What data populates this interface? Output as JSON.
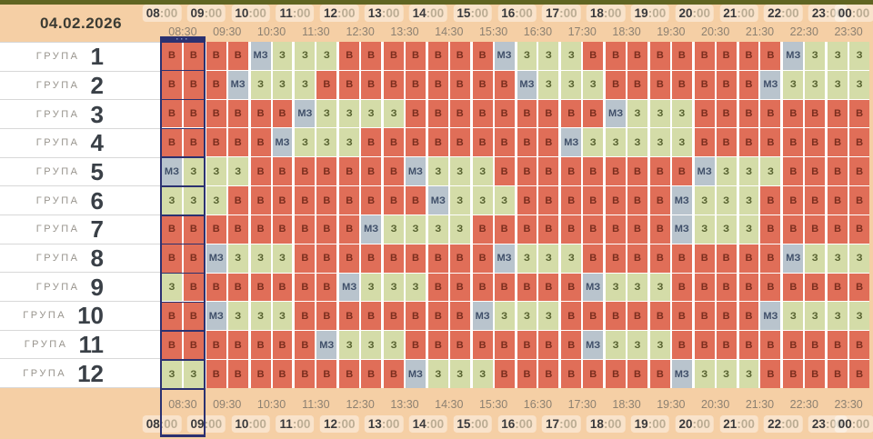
{
  "header": {
    "date": "04.02.2026"
  },
  "time_axis": {
    "hours": [
      "08:00",
      "09:00",
      "10:00",
      "11:00",
      "12:00",
      "13:00",
      "14:00",
      "15:00",
      "16:00",
      "17:00",
      "18:00",
      "19:00",
      "20:00",
      "21:00",
      "22:00",
      "23:00",
      "00:00"
    ],
    "half_hours": [
      "08:30",
      "09:30",
      "10:30",
      "11:30",
      "12:30",
      "13:30",
      "14:30",
      "15:30",
      "16:30",
      "17:30",
      "18:30",
      "19:30",
      "20:30",
      "21:30",
      "22:30",
      "23:30"
    ]
  },
  "highlight": {
    "marker": "···",
    "start_hour_index": 0
  },
  "groups_panel": {
    "group_word": "ГРУПА",
    "groups": [
      {
        "number": "1",
        "cells": [
          "В",
          "В",
          "В",
          "В",
          "МЗ",
          "З",
          "З",
          "З",
          "В",
          "В",
          "В",
          "В",
          "В",
          "В",
          "В",
          "МЗ",
          "З",
          "З",
          "З",
          "В",
          "В",
          "В",
          "В",
          "В",
          "В",
          "В",
          "В",
          "В",
          "МЗ",
          "З",
          "З",
          "З"
        ]
      },
      {
        "number": "2",
        "cells": [
          "В",
          "В",
          "В",
          "МЗ",
          "З",
          "З",
          "З",
          "В",
          "В",
          "В",
          "В",
          "В",
          "В",
          "В",
          "В",
          "В",
          "МЗ",
          "З",
          "З",
          "З",
          "В",
          "В",
          "В",
          "В",
          "В",
          "В",
          "В",
          "МЗ",
          "З",
          "З",
          "З",
          "З"
        ]
      },
      {
        "number": "3",
        "cells": [
          "В",
          "В",
          "В",
          "В",
          "В",
          "В",
          "МЗ",
          "З",
          "З",
          "З",
          "З",
          "В",
          "В",
          "В",
          "В",
          "В",
          "В",
          "В",
          "В",
          "В",
          "МЗ",
          "З",
          "З",
          "З",
          "В",
          "В",
          "В",
          "В",
          "В",
          "В",
          "В",
          "В"
        ]
      },
      {
        "number": "4",
        "cells": [
          "В",
          "В",
          "В",
          "В",
          "В",
          "МЗ",
          "З",
          "З",
          "З",
          "В",
          "В",
          "В",
          "В",
          "В",
          "В",
          "В",
          "В",
          "В",
          "МЗ",
          "З",
          "З",
          "З",
          "З",
          "З",
          "В",
          "В",
          "В",
          "В",
          "В",
          "В",
          "В",
          "В"
        ]
      },
      {
        "number": "5",
        "cells": [
          "МЗ",
          "З",
          "З",
          "З",
          "В",
          "В",
          "В",
          "В",
          "В",
          "В",
          "В",
          "МЗ",
          "З",
          "З",
          "З",
          "В",
          "В",
          "В",
          "В",
          "В",
          "В",
          "В",
          "В",
          "В",
          "МЗ",
          "З",
          "З",
          "З",
          "В",
          "В",
          "В",
          "В"
        ]
      },
      {
        "number": "6",
        "cells": [
          "З",
          "З",
          "З",
          "В",
          "В",
          "В",
          "В",
          "В",
          "В",
          "В",
          "В",
          "В",
          "МЗ",
          "З",
          "З",
          "З",
          "В",
          "В",
          "В",
          "В",
          "В",
          "В",
          "В",
          "МЗ",
          "З",
          "З",
          "З",
          "В",
          "В",
          "В",
          "В",
          "В"
        ]
      },
      {
        "number": "7",
        "cells": [
          "В",
          "В",
          "В",
          "В",
          "В",
          "В",
          "В",
          "В",
          "В",
          "МЗ",
          "З",
          "З",
          "З",
          "З",
          "В",
          "В",
          "В",
          "В",
          "В",
          "В",
          "В",
          "В",
          "В",
          "МЗ",
          "З",
          "З",
          "З",
          "В",
          "В",
          "В",
          "В",
          "В"
        ]
      },
      {
        "number": "8",
        "cells": [
          "В",
          "В",
          "МЗ",
          "З",
          "З",
          "З",
          "В",
          "В",
          "В",
          "В",
          "В",
          "В",
          "В",
          "В",
          "В",
          "МЗ",
          "З",
          "З",
          "З",
          "В",
          "В",
          "В",
          "В",
          "В",
          "В",
          "В",
          "В",
          "В",
          "МЗ",
          "З",
          "З",
          "З"
        ]
      },
      {
        "number": "9",
        "cells": [
          "З",
          "В",
          "В",
          "В",
          "В",
          "В",
          "В",
          "В",
          "МЗ",
          "З",
          "З",
          "З",
          "В",
          "В",
          "В",
          "В",
          "В",
          "В",
          "В",
          "МЗ",
          "З",
          "З",
          "З",
          "В",
          "В",
          "В",
          "В",
          "В",
          "В",
          "В",
          "В",
          "В"
        ]
      },
      {
        "number": "10",
        "cells": [
          "В",
          "В",
          "МЗ",
          "З",
          "З",
          "З",
          "В",
          "В",
          "В",
          "В",
          "В",
          "В",
          "В",
          "В",
          "МЗ",
          "З",
          "З",
          "З",
          "В",
          "В",
          "В",
          "В",
          "В",
          "В",
          "В",
          "В",
          "В",
          "МЗ",
          "З",
          "З",
          "З",
          "З"
        ]
      },
      {
        "number": "11",
        "cells": [
          "В",
          "В",
          "В",
          "В",
          "В",
          "В",
          "В",
          "МЗ",
          "З",
          "З",
          "З",
          "В",
          "В",
          "В",
          "В",
          "В",
          "В",
          "В",
          "В",
          "МЗ",
          "З",
          "З",
          "З",
          "В",
          "В",
          "В",
          "В",
          "В",
          "В",
          "В",
          "В",
          "В"
        ]
      },
      {
        "number": "12",
        "cells": [
          "З",
          "З",
          "В",
          "В",
          "В",
          "В",
          "В",
          "В",
          "В",
          "В",
          "В",
          "МЗ",
          "З",
          "З",
          "З",
          "В",
          "В",
          "В",
          "В",
          "В",
          "В",
          "В",
          "В",
          "МЗ",
          "З",
          "З",
          "З",
          "В",
          "В",
          "В",
          "В",
          "В"
        ]
      }
    ]
  },
  "colors": {
    "cell_off": "#e06e58",
    "cell_on": "#d4dca8",
    "cell_maybe": "#b9c4cd",
    "text_off": "#7b2e1e",
    "text_on": "#55602e",
    "text_maybe": "#3f4f69",
    "accent_top_bar": "#606522",
    "highlight": "#2b3170",
    "background": "#f5cfa5"
  }
}
